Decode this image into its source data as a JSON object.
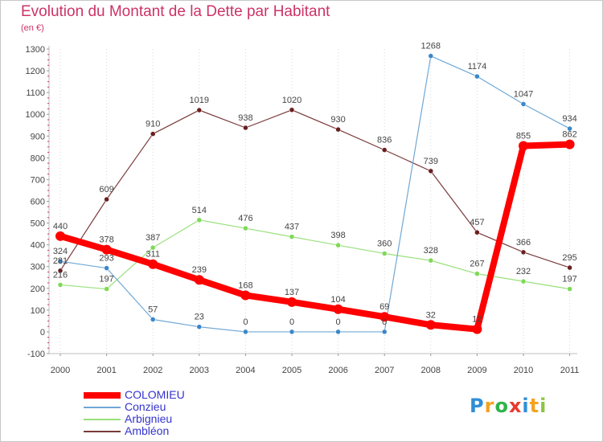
{
  "title": "Evolution du Montant de la Dette par Habitant",
  "subtitle": "(en €)",
  "brand": {
    "text": "Proxiti",
    "letters": [
      "P",
      "r",
      "o",
      "x",
      "i",
      "t",
      "i"
    ],
    "colors": [
      "#2f8fd8",
      "#f4a31f",
      "#2fb34a",
      "#e83a2f",
      "#2f8fd8",
      "#f4a31f",
      "#8dc63f"
    ]
  },
  "chart_data": {
    "type": "line",
    "categories": [
      "2000",
      "2001",
      "2002",
      "2003",
      "2004",
      "2005",
      "2006",
      "2007",
      "2008",
      "2009",
      "2010",
      "2011"
    ],
    "ylim": [
      -100,
      1300
    ],
    "yticks": [
      -100,
      0,
      100,
      200,
      300,
      400,
      500,
      600,
      700,
      800,
      900,
      1000,
      1100,
      1200,
      1300
    ],
    "grid": "vertical dotted",
    "legend_placement": "bottom-left",
    "series": [
      {
        "name": "COLOMIEU",
        "color": "#ff0000",
        "values": [
          440,
          378,
          311,
          239,
          168,
          137,
          104,
          69,
          32,
          12,
          855,
          862
        ]
      },
      {
        "name": "Conzieu",
        "color": "#6fa8d6",
        "values": [
          324,
          293,
          57,
          23,
          0,
          0,
          0,
          0,
          1268,
          1174,
          1047,
          934
        ]
      },
      {
        "name": "Arbignieu",
        "color": "#99e07a",
        "values": [
          216,
          197,
          387,
          514,
          476,
          437,
          398,
          360,
          328,
          267,
          232,
          197
        ]
      },
      {
        "name": "Ambléon",
        "color": "#7a3a3a",
        "values": [
          281,
          609,
          910,
          1019,
          938,
          1020,
          930,
          836,
          739,
          457,
          366,
          295
        ]
      }
    ]
  }
}
